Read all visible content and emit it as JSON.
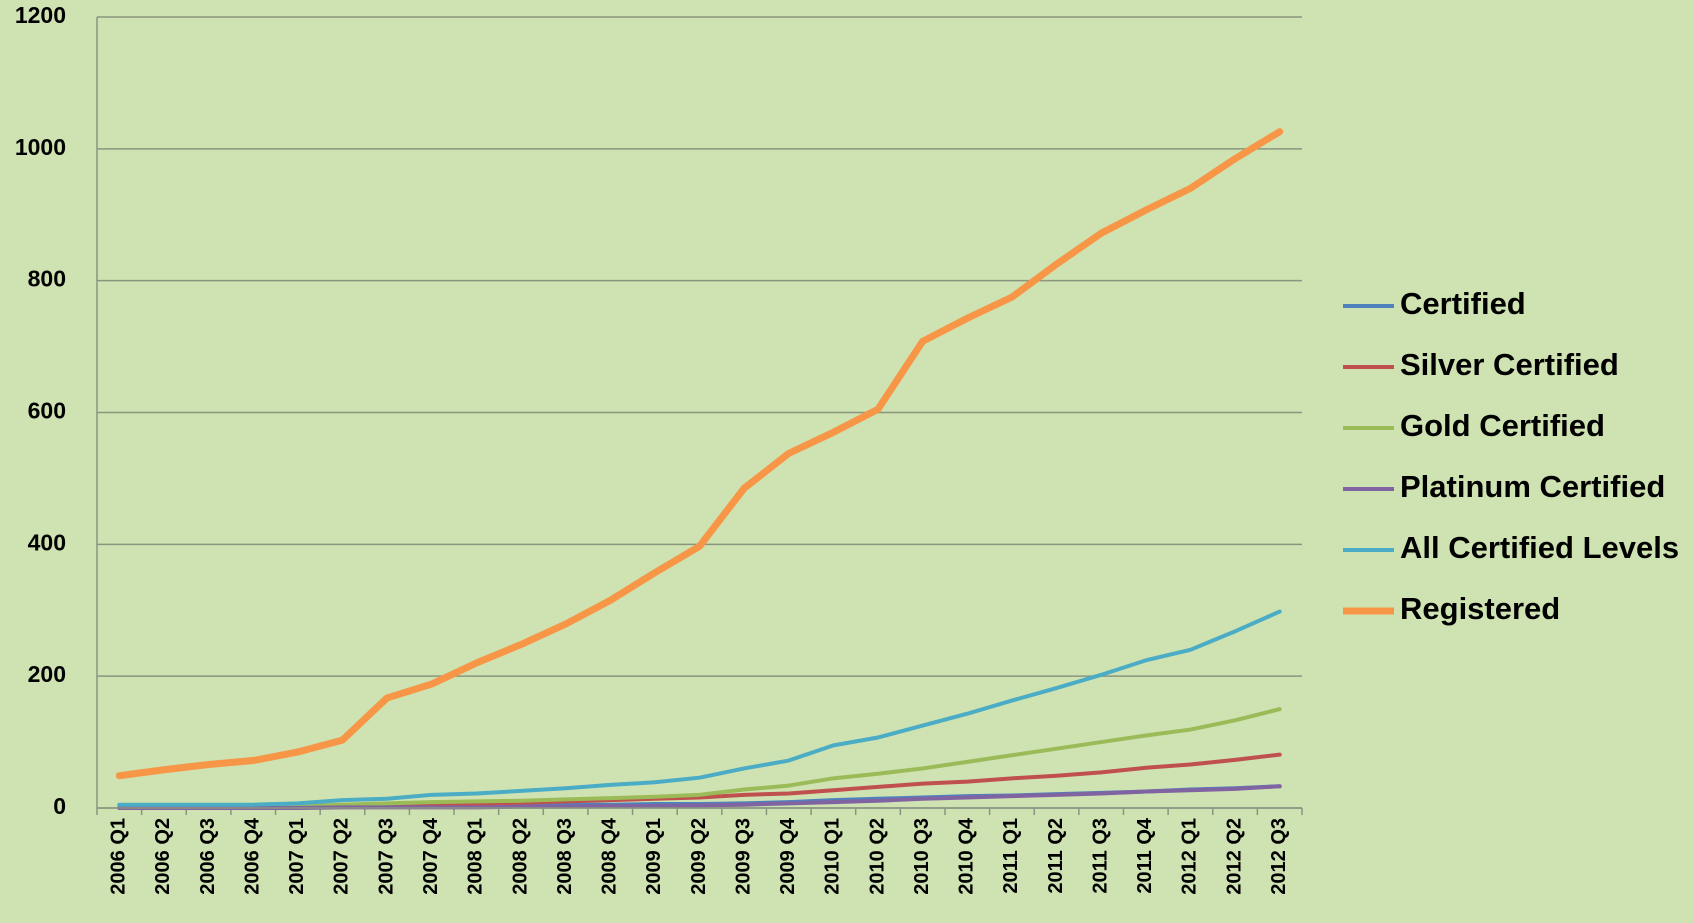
{
  "chart_data": {
    "type": "line",
    "categories": [
      "2006 Q1",
      "2006 Q2",
      "2006 Q3",
      "2006 Q4",
      "2007 Q1",
      "2007 Q2",
      "2007 Q3",
      "2007 Q4",
      "2008 Q1",
      "2008 Q2",
      "2008 Q3",
      "2008 Q4",
      "2009 Q1",
      "2009 Q2",
      "2009 Q3",
      "2009 Q4",
      "2010 Q1",
      "2010 Q2",
      "2010 Q3",
      "2010 Q4",
      "2011 Q1",
      "2011 Q2",
      "2011 Q3",
      "2011 Q4",
      "2012 Q1",
      "2012 Q2",
      "2012 Q3"
    ],
    "series": [
      {
        "name": "Certified",
        "color": "#4f81bd",
        "values": [
          3,
          3,
          3,
          3,
          3,
          4,
          4,
          5,
          5,
          5,
          5,
          5,
          6,
          6,
          7,
          9,
          12,
          14,
          16,
          18,
          19,
          21,
          23,
          25,
          28,
          30,
          33
        ]
      },
      {
        "name": "Silver Certified",
        "color": "#c0504d",
        "values": [
          0,
          0,
          1,
          1,
          2,
          3,
          4,
          5,
          6,
          8,
          10,
          12,
          14,
          16,
          20,
          22,
          27,
          32,
          37,
          40,
          45,
          49,
          54,
          61,
          66,
          73,
          81
        ]
      },
      {
        "name": "Gold Certified",
        "color": "#9bbb59",
        "values": [
          1,
          1,
          1,
          2,
          3,
          5,
          7,
          9,
          10,
          11,
          13,
          15,
          17,
          20,
          28,
          34,
          45,
          52,
          60,
          70,
          80,
          90,
          100,
          110,
          119,
          133,
          150
        ]
      },
      {
        "name": "Platinum Certified",
        "color": "#8064a2",
        "values": [
          0,
          0,
          0,
          0,
          0,
          1,
          1,
          1,
          1,
          2,
          2,
          3,
          3,
          4,
          5,
          7,
          9,
          11,
          14,
          16,
          18,
          20,
          22,
          25,
          27,
          29,
          33
        ]
      },
      {
        "name": "All Certified Levels",
        "color": "#4bacc6",
        "values": [
          5,
          5,
          5,
          5,
          7,
          12,
          14,
          20,
          22,
          26,
          30,
          35,
          39,
          46,
          60,
          72,
          95,
          107,
          125,
          143,
          163,
          182,
          202,
          224,
          240,
          268,
          298
        ]
      },
      {
        "name": "Registered",
        "color": "#f79646",
        "values": [
          49,
          58,
          66,
          72,
          85,
          103,
          167,
          188,
          220,
          248,
          279,
          315,
          357,
          397,
          485,
          538,
          570,
          605,
          708,
          743,
          775,
          825,
          872,
          907,
          940,
          985,
          1026
        ]
      }
    ],
    "ylim": [
      0,
      1200
    ],
    "yticks": [
      0,
      200,
      400,
      600,
      800,
      1000,
      1200
    ],
    "grid": true,
    "legend": "right"
  }
}
